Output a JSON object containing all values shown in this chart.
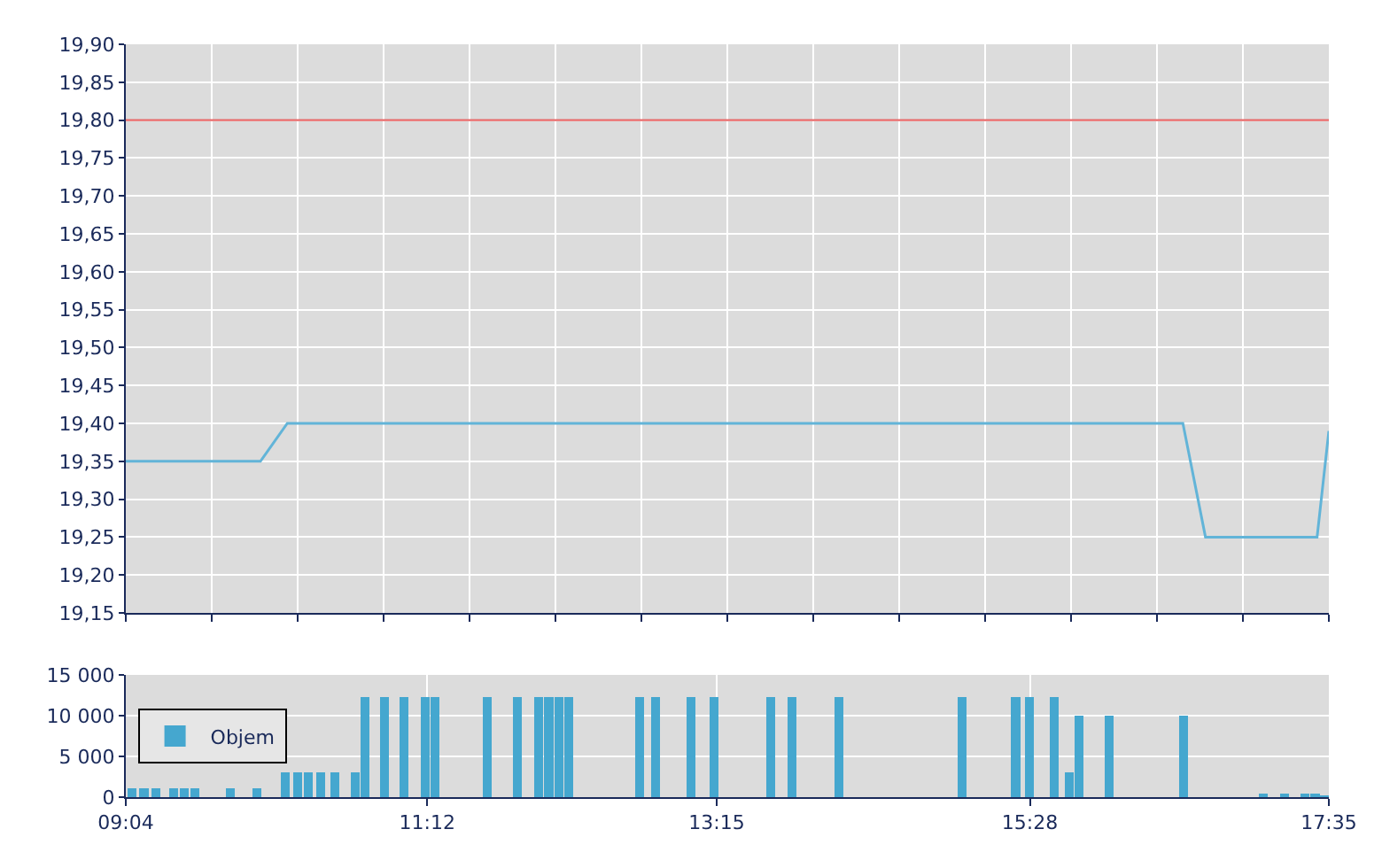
{
  "chart_data": [
    {
      "type": "line",
      "x": [
        9.0667,
        10.02,
        10.21,
        16.55,
        16.71,
        17.5,
        17.5833
      ],
      "series": [
        {
          "color": "#62b4d8",
          "values": [
            19.35,
            19.35,
            19.4,
            19.4,
            19.25,
            19.25,
            19.39
          ]
        }
      ],
      "xlim": [
        9.0667,
        17.5833
      ],
      "xticks": [
        {
          "value": 9.0667,
          "label": null
        },
        {
          "value": 9.675,
          "label": null
        },
        {
          "value": 10.2833,
          "label": null
        },
        {
          "value": 10.8917,
          "label": null
        },
        {
          "value": 11.5,
          "label": null
        },
        {
          "value": 12.1083,
          "label": null
        },
        {
          "value": 12.7167,
          "label": null
        },
        {
          "value": 13.325,
          "label": null
        },
        {
          "value": 13.9333,
          "label": null
        },
        {
          "value": 14.5417,
          "label": null
        },
        {
          "value": 15.15,
          "label": null
        },
        {
          "value": 15.7583,
          "label": null
        },
        {
          "value": 16.3667,
          "label": null
        },
        {
          "value": 16.975,
          "label": null
        },
        {
          "value": 17.5833,
          "label": null
        }
      ],
      "ylim": [
        19.15,
        19.9
      ],
      "yticks": [
        {
          "value": 19.15,
          "label": "19,15"
        },
        {
          "value": 19.2,
          "label": "19,20"
        },
        {
          "value": 19.25,
          "label": "19,25"
        },
        {
          "value": 19.3,
          "label": "19,30"
        },
        {
          "value": 19.35,
          "label": "19,35"
        },
        {
          "value": 19.4,
          "label": "19,40"
        },
        {
          "value": 19.45,
          "label": "19,45"
        },
        {
          "value": 19.5,
          "label": "19,50"
        },
        {
          "value": 19.55,
          "label": "19,55"
        },
        {
          "value": 19.6,
          "label": "19,60"
        },
        {
          "value": 19.65,
          "label": "19,65"
        },
        {
          "value": 19.7,
          "label": "19,70"
        },
        {
          "value": 19.75,
          "label": "19,75"
        },
        {
          "value": 19.8,
          "label": "19,80"
        },
        {
          "value": 19.85,
          "label": "19,85"
        },
        {
          "value": 19.9,
          "label": "19,90"
        }
      ],
      "ref_lines": [
        {
          "axis": "y",
          "value": 19.8,
          "color": "#e86a6a"
        }
      ],
      "grid": true,
      "tick_labels": "y",
      "marker": "none"
    },
    {
      "type": "bar",
      "x": [
        9.111,
        9.195,
        9.279,
        9.405,
        9.481,
        9.556,
        9.807,
        9.995,
        10.196,
        10.283,
        10.359,
        10.446,
        10.547,
        10.69,
        10.76,
        10.898,
        11.036,
        11.187,
        11.254,
        11.625,
        11.839,
        11.989,
        12.061,
        12.132,
        12.202,
        12.704,
        12.817,
        13.068,
        13.231,
        13.632,
        13.783,
        14.115,
        14.987,
        15.367,
        15.464,
        15.639,
        15.746,
        15.815,
        16.028,
        16.555,
        17.119,
        17.27,
        17.414,
        17.485,
        17.55
      ],
      "series": [
        {
          "name": "Objem",
          "color": "#45a7cf",
          "values": [
            1100,
            1100,
            1100,
            1100,
            1100,
            1100,
            1100,
            1100,
            3000,
            3000,
            3000,
            3000,
            3000,
            3000,
            12300,
            12300,
            12300,
            12300,
            12300,
            12300,
            12300,
            12300,
            12300,
            12300,
            12300,
            12300,
            12300,
            12300,
            12300,
            12300,
            12300,
            12300,
            12300,
            12300,
            12300,
            12300,
            3000,
            10000,
            10000,
            10000,
            400,
            400,
            400,
            400,
            200
          ]
        }
      ],
      "xlim": [
        9.0667,
        17.5833
      ],
      "xticks": [
        {
          "value": 9.0667,
          "label": "09:04"
        },
        {
          "value": 11.2,
          "label": "11:12"
        },
        {
          "value": 13.25,
          "label": "13:15"
        },
        {
          "value": 15.4667,
          "label": "15:28"
        },
        {
          "value": 17.5833,
          "label": "17:35"
        }
      ],
      "ylim": [
        0,
        15000
      ],
      "yticks": [
        0,
        {
          "value": 5000,
          "label": "5 000"
        },
        {
          "value": 10000,
          "label": "10 000"
        },
        {
          "value": 15000,
          "label": "15 000"
        }
      ],
      "grid": true,
      "legend": "left"
    }
  ]
}
